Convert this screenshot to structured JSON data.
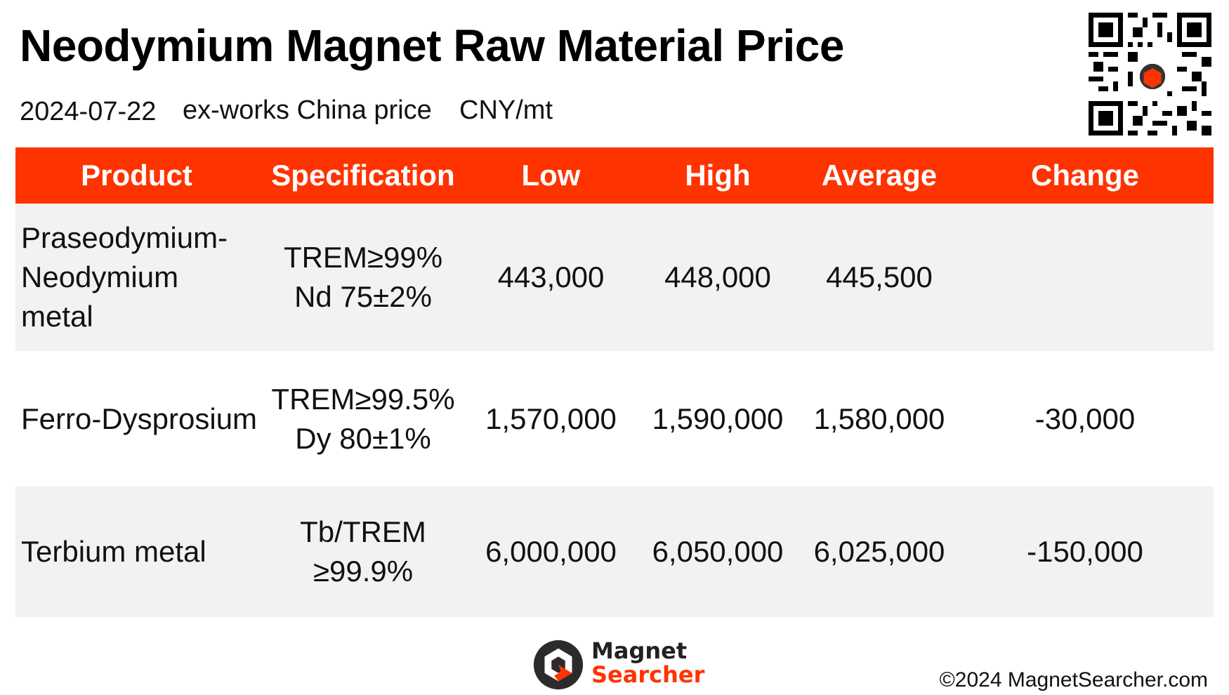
{
  "header": {
    "title": "Neodymium Magnet Raw Material Price",
    "date": "2024-07-22",
    "basis": "ex-works China price",
    "unit": "CNY/mt"
  },
  "table": {
    "columns": [
      "Product",
      "Specification",
      "Low",
      "High",
      "Average",
      "Change"
    ],
    "rows": [
      {
        "product": "Praseodymium-Neodymium metal",
        "spec_line1": "TREM≥99%",
        "spec_line2": "Nd 75±2%",
        "low": "443,000",
        "high": "448,000",
        "average": "445,500",
        "change": ""
      },
      {
        "product": "Ferro-Dysprosium",
        "spec_line1": "TREM≥99.5%",
        "spec_line2": "Dy 80±1%",
        "low": "1,570,000",
        "high": "1,590,000",
        "average": "1,580,000",
        "change": "-30,000"
      },
      {
        "product": "Terbium metal",
        "spec_line1": "Tb/TREM",
        "spec_line2": "≥99.9%",
        "low": "6,000,000",
        "high": "6,050,000",
        "average": "6,025,000",
        "change": "-150,000"
      }
    ]
  },
  "footer": {
    "logo_line1": "Magnet",
    "logo_line2": "Searcher",
    "copyright": "©2024 MagnetSearcher.com"
  },
  "colors": {
    "header_bg": "#ff3300",
    "negative_change": "#e02020",
    "row_shade": "#f2f2f2"
  },
  "icons": [
    "qr-code-icon",
    "magnet-searcher-logo-icon"
  ]
}
